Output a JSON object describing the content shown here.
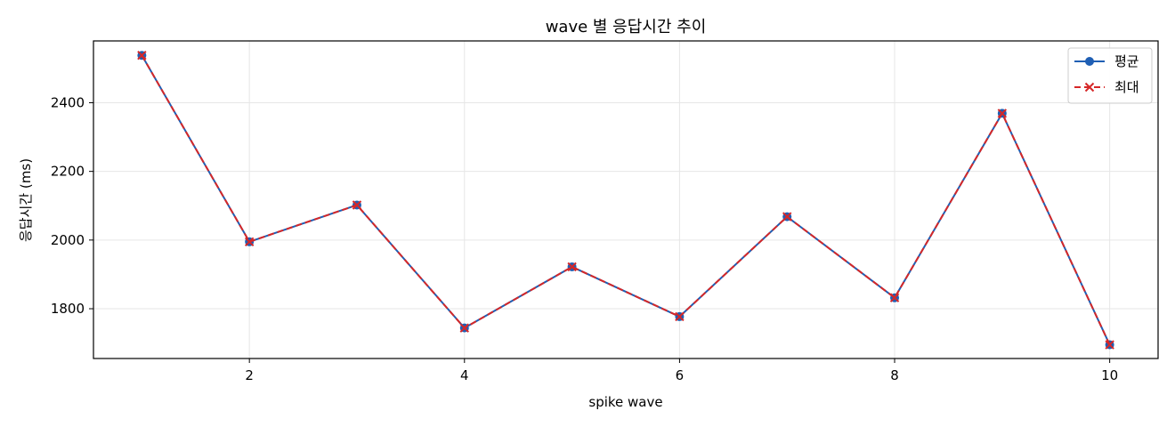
{
  "chart_data": {
    "type": "line",
    "title": "wave 별 응답시간 추이",
    "xlabel": "spike wave",
    "ylabel": "응답시간 (ms)",
    "x": [
      1,
      2,
      3,
      4,
      5,
      6,
      7,
      8,
      9,
      10
    ],
    "xlim": [
      0.55,
      10.45
    ],
    "ylim": [
      1655,
      2580
    ],
    "xticks": [
      2,
      4,
      6,
      8,
      10
    ],
    "yticks": [
      1800,
      2000,
      2200,
      2400
    ],
    "grid": true,
    "legend_position": "top-right",
    "series": [
      {
        "name": "평균",
        "values": [
          2538,
          1995,
          2102,
          1744,
          1922,
          1777,
          2068,
          1832,
          2369,
          1695
        ],
        "color": "#1f5fb4",
        "line_style": "solid",
        "marker": "circle"
      },
      {
        "name": "최대",
        "values": [
          2538,
          1995,
          2102,
          1744,
          1922,
          1777,
          2068,
          1832,
          2369,
          1695
        ],
        "color": "#d62728",
        "line_style": "dashed",
        "marker": "x"
      }
    ]
  }
}
